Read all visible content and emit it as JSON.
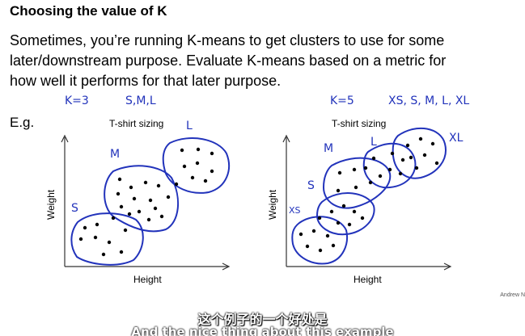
{
  "slide": {
    "title": "Choosing the value of K",
    "lines": [
      "Sometimes, you’re running K-means to get clusters to use for some",
      "later/downstream purpose. Evaluate K-means based on a metric for",
      "how well it performs for that later purpose."
    ],
    "eg_label": "E.g.",
    "credit": "Andrew N"
  },
  "left_plot": {
    "title": "T-shirt sizing",
    "xlabel": "Height",
    "ylabel": "Weight",
    "annotation_k": "K=3",
    "annotation_sizes": "S,M,L",
    "cluster_labels": [
      "S",
      "M",
      "L"
    ]
  },
  "right_plot": {
    "title": "T-shirt sizing",
    "xlabel": "Height",
    "ylabel": "Weight",
    "annotation_k": "K=5",
    "annotation_sizes": "XS, S, M, L, XL",
    "cluster_labels": [
      "XS",
      "S",
      "M",
      "L",
      "XL"
    ]
  },
  "subtitles": {
    "chinese": "这个例子的一个好处是",
    "english": "And the nice thing about this example"
  },
  "colors": {
    "ink": "#2233bb",
    "axis": "#333333"
  }
}
